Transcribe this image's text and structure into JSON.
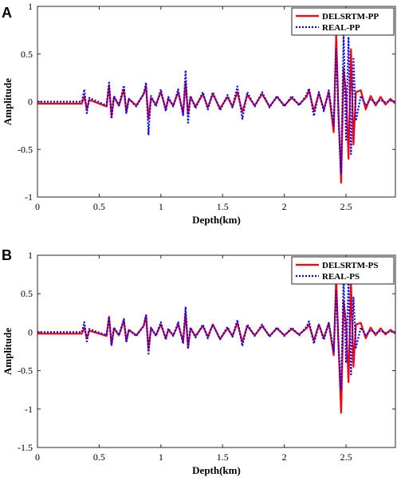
{
  "chart_data": [
    {
      "type": "line",
      "panel_label": "A",
      "xlabel": "Depth(km)",
      "ylabel": "Amplitude",
      "xlim": [
        0,
        2.9
      ],
      "ylim": [
        -1,
        1
      ],
      "xticks": [
        0,
        0.5,
        1,
        1.5,
        2,
        2.5
      ],
      "yticks": [
        -1,
        -0.5,
        0,
        0.5,
        1
      ],
      "xtick_labels": [
        "0",
        "0.5",
        "1",
        "1.5",
        "2",
        "2.5"
      ],
      "ytick_labels": [
        "-1",
        "-0.5",
        "0",
        "0.5",
        "1"
      ],
      "legend_position": "top-right",
      "grid": false,
      "series": [
        {
          "name": "DELSRTM-PP",
          "color": "#ff0000",
          "style": "solid",
          "x": [
            0,
            0.36,
            0.38,
            0.4,
            0.42,
            0.56,
            0.58,
            0.6,
            0.62,
            0.66,
            0.7,
            0.72,
            0.74,
            0.8,
            0.86,
            0.88,
            0.9,
            0.92,
            0.96,
            1.0,
            1.04,
            1.06,
            1.1,
            1.14,
            1.18,
            1.2,
            1.22,
            1.24,
            1.28,
            1.34,
            1.38,
            1.42,
            1.48,
            1.54,
            1.58,
            1.62,
            1.66,
            1.7,
            1.76,
            1.82,
            1.88,
            1.94,
            2.0,
            2.06,
            2.12,
            2.18,
            2.2,
            2.24,
            2.28,
            2.32,
            2.36,
            2.4,
            2.42,
            2.44,
            2.46,
            2.48,
            2.5,
            2.52,
            2.54,
            2.56,
            2.58,
            2.62,
            2.66,
            2.7,
            2.74,
            2.78,
            2.82,
            2.86,
            2.9
          ],
          "y": [
            -0.02,
            -0.02,
            0.06,
            -0.08,
            0.02,
            -0.05,
            0.17,
            -0.15,
            0.05,
            -0.04,
            0.13,
            -0.11,
            0.03,
            -0.04,
            0.08,
            0.16,
            -0.18,
            0.04,
            -0.03,
            0.1,
            -0.08,
            0.03,
            -0.04,
            0.1,
            -0.12,
            0.2,
            -0.13,
            0.05,
            -0.05,
            0.08,
            -0.06,
            0.08,
            -0.07,
            0.05,
            -0.05,
            0.1,
            -0.11,
            0.07,
            -0.04,
            0.08,
            -0.05,
            0.05,
            -0.04,
            0.04,
            -0.03,
            0.05,
            0.12,
            -0.1,
            0.09,
            -0.08,
            0.1,
            -0.32,
            0.7,
            -0.15,
            -0.85,
            0.35,
            0.1,
            -0.6,
            0.55,
            -0.45,
            0.1,
            0.12,
            -0.08,
            0.06,
            -0.04,
            0.05,
            -0.03,
            0.03,
            -0.02
          ]
        },
        {
          "name": "REAL-PP",
          "color": "#0000ff",
          "style": "dotted",
          "x": [
            0,
            0.36,
            0.38,
            0.4,
            0.42,
            0.56,
            0.58,
            0.6,
            0.62,
            0.66,
            0.7,
            0.72,
            0.74,
            0.8,
            0.86,
            0.88,
            0.9,
            0.92,
            0.96,
            1.0,
            1.04,
            1.06,
            1.1,
            1.14,
            1.18,
            1.2,
            1.22,
            1.24,
            1.28,
            1.34,
            1.38,
            1.42,
            1.48,
            1.54,
            1.58,
            1.62,
            1.66,
            1.7,
            1.76,
            1.82,
            1.88,
            1.94,
            2.0,
            2.06,
            2.12,
            2.18,
            2.2,
            2.24,
            2.28,
            2.32,
            2.36,
            2.4,
            2.42,
            2.44,
            2.46,
            2.48,
            2.5,
            2.52,
            2.54,
            2.56,
            2.58,
            2.62,
            2.66,
            2.7,
            2.74,
            2.78,
            2.82,
            2.86,
            2.9
          ],
          "y": [
            0.0,
            0.0,
            0.13,
            -0.12,
            0.04,
            -0.04,
            0.2,
            -0.18,
            0.06,
            -0.04,
            0.17,
            -0.12,
            0.03,
            -0.05,
            0.08,
            0.2,
            -0.35,
            0.06,
            -0.05,
            0.13,
            -0.1,
            0.05,
            -0.05,
            0.13,
            -0.15,
            0.33,
            -0.22,
            0.06,
            -0.07,
            0.1,
            -0.08,
            0.1,
            -0.09,
            0.07,
            -0.06,
            0.16,
            -0.18,
            0.1,
            -0.05,
            0.1,
            -0.06,
            0.06,
            -0.05,
            0.06,
            -0.04,
            0.07,
            0.14,
            -0.15,
            0.1,
            -0.1,
            0.12,
            -0.25,
            0.55,
            -0.22,
            -0.75,
            0.7,
            -0.4,
            0.68,
            -0.55,
            0.45,
            -0.2,
            0.06,
            -0.04,
            0.03,
            -0.02,
            0.02,
            -0.01,
            0.01,
            0.0
          ]
        }
      ]
    },
    {
      "type": "line",
      "panel_label": "B",
      "xlabel": "Depth(km)",
      "ylabel": "Amplitude",
      "xlim": [
        0,
        2.9
      ],
      "ylim": [
        -1.5,
        1
      ],
      "xticks": [
        0,
        0.5,
        1,
        1.5,
        2,
        2.5
      ],
      "yticks": [
        -1.5,
        -1,
        -0.5,
        0,
        0.5,
        1
      ],
      "xtick_labels": [
        "0",
        "0.5",
        "1",
        "1.5",
        "2",
        "2.5"
      ],
      "ytick_labels": [
        "-1.5",
        "-1",
        "-0.5",
        "0",
        "0.5",
        "1"
      ],
      "legend_position": "top-right",
      "grid": false,
      "series": [
        {
          "name": "DELSRTM-PS",
          "color": "#ff0000",
          "style": "solid",
          "x": [
            0,
            0.36,
            0.38,
            0.4,
            0.42,
            0.56,
            0.58,
            0.6,
            0.62,
            0.66,
            0.7,
            0.72,
            0.74,
            0.8,
            0.86,
            0.88,
            0.9,
            0.92,
            0.96,
            1.0,
            1.04,
            1.06,
            1.1,
            1.14,
            1.18,
            1.2,
            1.22,
            1.24,
            1.28,
            1.34,
            1.38,
            1.42,
            1.48,
            1.54,
            1.58,
            1.62,
            1.66,
            1.7,
            1.76,
            1.82,
            1.88,
            1.94,
            2.0,
            2.06,
            2.12,
            2.18,
            2.2,
            2.24,
            2.28,
            2.32,
            2.36,
            2.4,
            2.42,
            2.44,
            2.46,
            2.48,
            2.5,
            2.52,
            2.54,
            2.56,
            2.58,
            2.62,
            2.66,
            2.7,
            2.74,
            2.78,
            2.82,
            2.86,
            2.9
          ],
          "y": [
            -0.02,
            -0.02,
            0.06,
            -0.08,
            0.02,
            -0.05,
            0.2,
            -0.17,
            0.05,
            -0.04,
            0.15,
            -0.12,
            0.03,
            -0.04,
            0.08,
            0.22,
            -0.22,
            0.05,
            -0.04,
            0.1,
            -0.08,
            0.03,
            -0.04,
            0.1,
            -0.12,
            0.25,
            -0.2,
            0.05,
            -0.05,
            0.08,
            -0.06,
            0.1,
            -0.09,
            0.05,
            -0.05,
            0.12,
            -0.13,
            0.08,
            -0.04,
            0.08,
            -0.05,
            0.05,
            -0.04,
            0.04,
            -0.03,
            0.05,
            0.1,
            -0.11,
            0.1,
            -0.08,
            0.12,
            -0.3,
            0.7,
            -0.2,
            -1.05,
            0.4,
            0.12,
            -0.65,
            0.65,
            -0.45,
            0.1,
            0.12,
            -0.08,
            0.06,
            -0.04,
            0.05,
            -0.03,
            0.03,
            -0.02
          ]
        },
        {
          "name": "REAL-PS",
          "color": "#0000ff",
          "style": "dotted",
          "x": [
            0,
            0.36,
            0.38,
            0.4,
            0.42,
            0.56,
            0.58,
            0.6,
            0.62,
            0.66,
            0.7,
            0.72,
            0.74,
            0.8,
            0.86,
            0.88,
            0.9,
            0.92,
            0.96,
            1.0,
            1.04,
            1.06,
            1.1,
            1.14,
            1.18,
            1.2,
            1.22,
            1.24,
            1.28,
            1.34,
            1.38,
            1.42,
            1.48,
            1.54,
            1.58,
            1.62,
            1.66,
            1.7,
            1.76,
            1.82,
            1.88,
            1.94,
            2.0,
            2.06,
            2.12,
            2.18,
            2.2,
            2.24,
            2.28,
            2.32,
            2.36,
            2.4,
            2.42,
            2.44,
            2.46,
            2.48,
            2.5,
            2.52,
            2.54,
            2.56,
            2.58,
            2.62,
            2.66,
            2.7,
            2.74,
            2.78,
            2.82,
            2.86,
            2.9
          ],
          "y": [
            0.0,
            0.0,
            0.13,
            -0.12,
            0.04,
            -0.04,
            0.2,
            -0.16,
            0.06,
            -0.04,
            0.17,
            -0.12,
            0.03,
            -0.05,
            0.08,
            0.22,
            -0.28,
            0.06,
            -0.05,
            0.13,
            -0.1,
            0.05,
            -0.05,
            0.13,
            -0.15,
            0.33,
            -0.22,
            0.06,
            -0.07,
            0.1,
            -0.08,
            0.1,
            -0.09,
            0.07,
            -0.06,
            0.16,
            -0.18,
            0.1,
            -0.05,
            0.1,
            -0.06,
            0.06,
            -0.05,
            0.06,
            -0.04,
            0.07,
            0.14,
            -0.15,
            0.1,
            -0.1,
            0.12,
            -0.25,
            0.55,
            -0.22,
            -0.75,
            0.7,
            -0.4,
            0.68,
            -0.55,
            0.45,
            -0.2,
            0.06,
            -0.04,
            0.03,
            -0.02,
            0.02,
            -0.01,
            0.01,
            0.0
          ]
        }
      ]
    }
  ]
}
